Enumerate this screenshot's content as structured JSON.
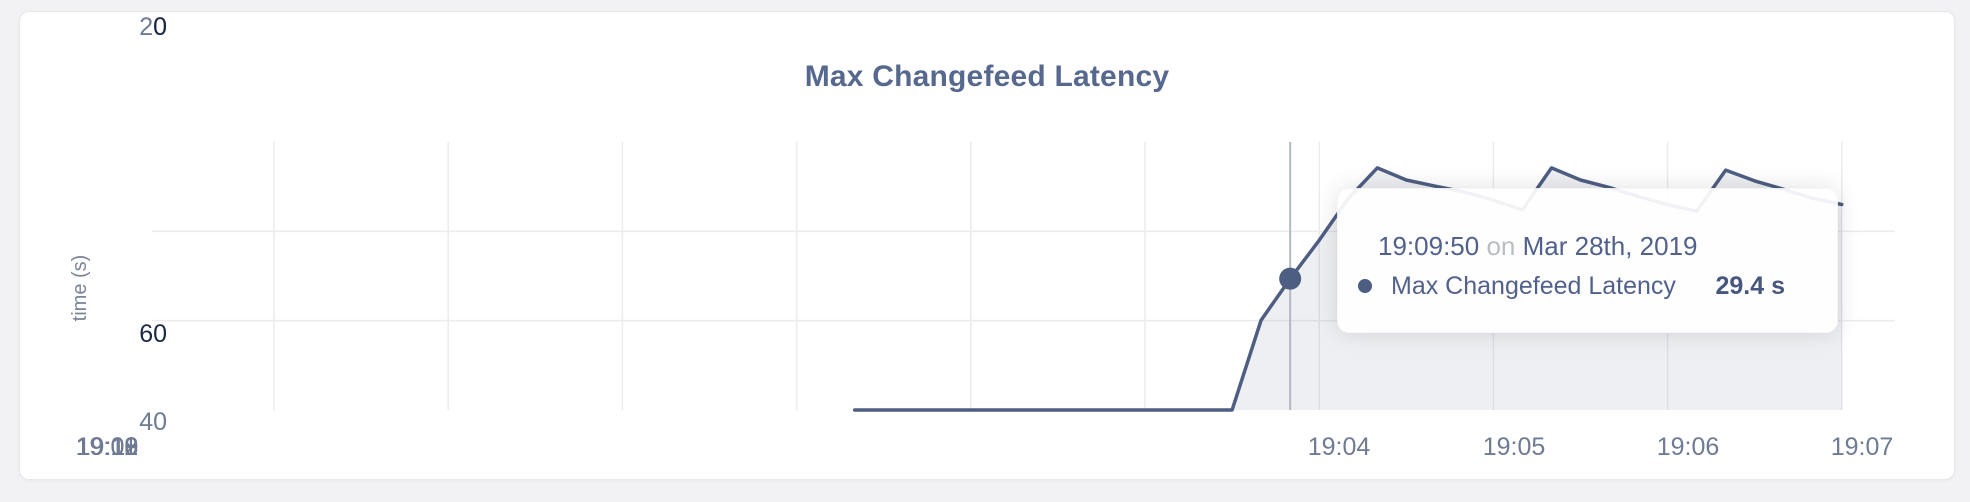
{
  "colors": {
    "line": "#4e5e82",
    "fill": "rgba(78,94,130,0.10)",
    "dot": "#4e5e82",
    "crosshair": "#b3b8c2",
    "gridline": "#ebecef",
    "title": "#56688e",
    "axis_dark": "#1b2745",
    "axis_light": "#6f7a93"
  },
  "tooltip": {
    "time": "19:09:50",
    "preposition": "on",
    "date": "Mar 28th, 2019",
    "series": "Max Changefeed Latency",
    "value": "29.4 s"
  },
  "chart_data": {
    "type": "area",
    "title": "Max Changefeed Latency",
    "ylabel": "time (s)",
    "xlabel": "",
    "ylim": [
      0,
      60
    ],
    "ytick_labels": [
      "60",
      "40",
      "20",
      "0"
    ],
    "ytick_values": [
      60,
      40,
      20,
      0
    ],
    "xtick_labels": [
      "19:04",
      "19:05",
      "19:06",
      "19:07",
      "19:08",
      "19:09",
      "19:10",
      "19:11",
      "19:12",
      "19:13"
    ],
    "x_unit": "seconds after 19:04:00 on Mar 28th, 2019",
    "grid": true,
    "legend_position": "none",
    "series": [
      {
        "name": "Max Changefeed Latency",
        "unit": "s",
        "points": [
          [
            200,
            0
          ],
          [
            210,
            0
          ],
          [
            220,
            0
          ],
          [
            230,
            0
          ],
          [
            240,
            0
          ],
          [
            250,
            0
          ],
          [
            260,
            0
          ],
          [
            270,
            0
          ],
          [
            280,
            0
          ],
          [
            290,
            0
          ],
          [
            300,
            0
          ],
          [
            310,
            0
          ],
          [
            320,
            0
          ],
          [
            330,
            0
          ],
          [
            340,
            20.1
          ],
          [
            350,
            29.4
          ],
          [
            360,
            38.0
          ],
          [
            370,
            47.3
          ],
          [
            380,
            54.2
          ],
          [
            390,
            51.5
          ],
          [
            400,
            50.1
          ],
          [
            410,
            48.8
          ],
          [
            420,
            47.0
          ],
          [
            430,
            44.8
          ],
          [
            440,
            54.2
          ],
          [
            450,
            51.5
          ],
          [
            460,
            49.8
          ],
          [
            470,
            47.8
          ],
          [
            480,
            46.0
          ],
          [
            490,
            44.5
          ],
          [
            500,
            53.7
          ],
          [
            510,
            51.3
          ],
          [
            520,
            49.4
          ],
          [
            530,
            47.4
          ],
          [
            540,
            46.0
          ]
        ]
      }
    ],
    "hover_point": {
      "t": 350,
      "value": 29.4,
      "time": "19:09:50",
      "date": "Mar 28th, 2019",
      "display_value": "29.4 s"
    }
  }
}
